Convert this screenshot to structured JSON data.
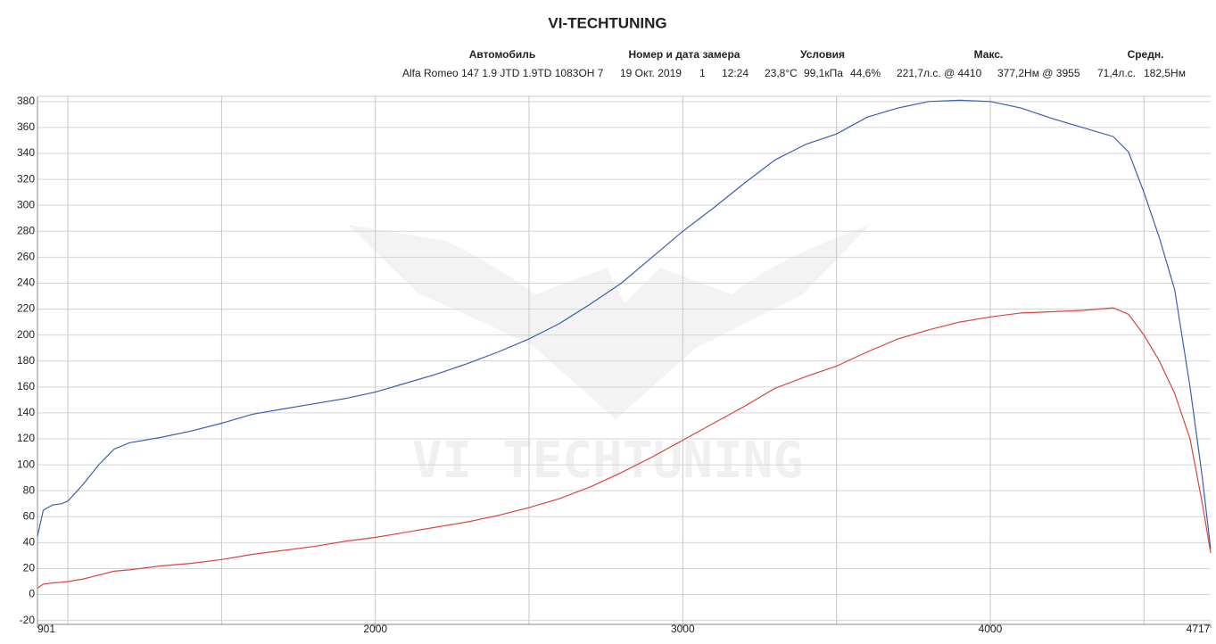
{
  "header": {
    "title": "VI-TECHTUNING",
    "columns": [
      "Автомобиль",
      "Номер и дата замера",
      "Условия",
      "Макс.",
      "Средн."
    ],
    "values": [
      "Alfa Romeo 147 1.9 JTD 1.9TD 1083OH 7",
      "19 Окт. 2019",
      "1",
      "12:24",
      "23,8°C",
      "99,1кПа",
      "44,6%",
      "221,7л.с. @ 4410",
      "377,2Нм @ 3955",
      "71,4л.с.",
      "182,5Нм"
    ]
  },
  "watermark": "VI TECHTUNING",
  "chart_data": {
    "type": "line",
    "x": [
      901,
      920,
      950,
      980,
      1000,
      1050,
      1100,
      1150,
      1200,
      1300,
      1400,
      1500,
      1600,
      1700,
      1800,
      1900,
      2000,
      2100,
      2200,
      2300,
      2400,
      2500,
      2600,
      2700,
      2800,
      2900,
      3000,
      3100,
      3200,
      3300,
      3400,
      3500,
      3600,
      3700,
      3800,
      3900,
      4000,
      4100,
      4200,
      4300,
      4400,
      4450,
      4500,
      4550,
      4600,
      4650,
      4690,
      4717
    ],
    "series": [
      {
        "color": "#3a5fb0",
        "values": [
          45,
          65,
          69,
          70,
          72,
          85,
          100,
          112,
          117,
          121,
          126,
          132,
          139,
          143,
          147,
          151,
          156,
          163,
          170,
          178,
          187,
          197,
          209,
          224,
          240,
          260,
          280,
          298,
          317,
          335,
          347,
          355,
          368,
          375,
          380,
          381,
          380,
          375,
          367,
          360,
          353,
          341,
          310,
          275,
          235,
          160,
          90,
          35
        ]
      },
      {
        "color": "#d9453f",
        "values": [
          5,
          8,
          9,
          9.5,
          10,
          12,
          15,
          18,
          19,
          22,
          24,
          27,
          31,
          34,
          37,
          41,
          44,
          48,
          52,
          56,
          61,
          67,
          74,
          83,
          94,
          106,
          119,
          132,
          145,
          159,
          168,
          176,
          187,
          197,
          204,
          210,
          214,
          217,
          218,
          219,
          221,
          216,
          200,
          180,
          155,
          120,
          70,
          32
        ]
      }
    ],
    "xlim": [
      901,
      4717
    ],
    "ylim": [
      -23,
      384
    ],
    "xticks": [
      901,
      2000,
      3000,
      4000,
      4717
    ],
    "xgrid": [
      1000,
      1500,
      2000,
      2500,
      3000,
      3500,
      4000,
      4500
    ],
    "yticks": [
      -20,
      0,
      20,
      40,
      60,
      80,
      100,
      120,
      140,
      160,
      180,
      200,
      220,
      240,
      260,
      280,
      300,
      320,
      340,
      360,
      380
    ],
    "grid": true
  }
}
